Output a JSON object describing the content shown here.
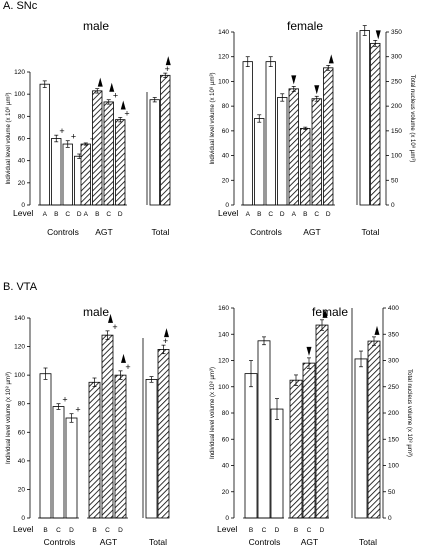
{
  "sections": [
    {
      "label": "A. SNc"
    },
    {
      "label": "B. VTA"
    }
  ],
  "common": {
    "ylabel_left": "Individual level volume (x 10⁸ µm³)",
    "ylabel_right": "Total nucleus volume (x 10⁸ µm³)",
    "level_word": "Level",
    "group_controls": "Controls",
    "group_agt": "AGT",
    "group_total": "Total",
    "plus_mark": "+"
  },
  "chart_data": [
    {
      "type": "bar",
      "section": "A. SNc",
      "title": "male",
      "ylim": [
        0,
        120
      ],
      "yticks": [
        0,
        20,
        40,
        60,
        80,
        100,
        120
      ],
      "y2": null,
      "controls": {
        "levels": [
          "A",
          "B",
          "C",
          "D"
        ],
        "values": [
          109,
          60,
          55,
          44
        ],
        "errors": [
          3,
          3,
          3,
          2
        ],
        "plus": [
          false,
          true,
          true,
          true
        ]
      },
      "agt": {
        "levels": [
          "A",
          "B",
          "C",
          "D"
        ],
        "values": [
          55,
          103,
          93,
          77
        ],
        "errors": [
          1,
          2,
          2,
          2
        ],
        "plus": [
          true,
          false,
          true,
          true
        ],
        "arrow_up": [
          false,
          true,
          true,
          true
        ]
      },
      "total": {
        "values": [
          95,
          117
        ],
        "errors": [
          2,
          2
        ],
        "plus": [
          false,
          true
        ],
        "arrow_up": [
          false,
          true
        ],
        "arrow_down": [
          false,
          false
        ]
      }
    },
    {
      "type": "bar",
      "section": "A. SNc",
      "title": "female",
      "ylim": [
        0,
        140
      ],
      "yticks": [
        0,
        20,
        40,
        60,
        80,
        100,
        120,
        140
      ],
      "y2": {
        "ylim": [
          0,
          350
        ],
        "yticks": [
          0,
          50,
          100,
          150,
          200,
          250,
          300,
          350
        ]
      },
      "controls": {
        "levels": [
          "A",
          "B",
          "C",
          "D"
        ],
        "values": [
          116,
          70,
          116,
          87
        ],
        "errors": [
          4,
          3,
          4,
          3
        ],
        "plus": [
          false,
          false,
          false,
          false
        ]
      },
      "agt": {
        "levels": [
          "A",
          "B",
          "C",
          "D"
        ],
        "values": [
          94,
          62,
          86,
          111
        ],
        "errors": [
          2,
          1,
          2,
          2
        ],
        "plus": [
          false,
          false,
          false,
          false
        ],
        "arrow_up": [
          false,
          false,
          false,
          true
        ],
        "arrow_down": [
          true,
          false,
          true,
          false
        ]
      },
      "total": {
        "values": [
          353,
          327
        ],
        "errors": [
          10,
          6
        ],
        "plus": [
          false,
          false
        ],
        "arrow_up": [
          false,
          false
        ],
        "arrow_down": [
          false,
          true
        ]
      }
    },
    {
      "type": "bar",
      "section": "B. VTA",
      "title": "male",
      "ylim": [
        0,
        140
      ],
      "yticks": [
        0,
        20,
        40,
        60,
        80,
        100,
        120,
        140
      ],
      "y2": null,
      "controls": {
        "levels": [
          "B",
          "C",
          "D"
        ],
        "values": [
          101,
          78,
          70
        ],
        "errors": [
          4,
          2,
          3
        ],
        "plus": [
          false,
          true,
          true
        ]
      },
      "agt": {
        "levels": [
          "B",
          "C",
          "D"
        ],
        "values": [
          95,
          128,
          100
        ],
        "errors": [
          3,
          3,
          3
        ],
        "plus": [
          false,
          true,
          true
        ],
        "arrow_up": [
          false,
          true,
          true
        ]
      },
      "total": {
        "values": [
          97,
          118
        ],
        "errors": [
          2,
          3
        ],
        "plus": [
          false,
          true
        ],
        "arrow_up": [
          false,
          true
        ],
        "arrow_down": [
          false,
          false
        ]
      }
    },
    {
      "type": "bar",
      "section": "B. VTA",
      "title": "female",
      "ylim": [
        0,
        160
      ],
      "yticks": [
        0,
        20,
        40,
        60,
        80,
        100,
        120,
        140,
        160
      ],
      "y2": {
        "ylim": [
          0,
          400
        ],
        "yticks": [
          0,
          50,
          100,
          150,
          200,
          250,
          300,
          350,
          400
        ]
      },
      "controls": {
        "levels": [
          "B",
          "C",
          "D"
        ],
        "values": [
          110,
          135,
          83
        ],
        "errors": [
          10,
          3,
          8
        ],
        "plus": [
          false,
          false,
          false
        ]
      },
      "agt": {
        "levels": [
          "B",
          "C",
          "D"
        ],
        "values": [
          105,
          118,
          147
        ],
        "errors": [
          4,
          4,
          4
        ],
        "plus": [
          false,
          false,
          false
        ],
        "arrow_up": [
          false,
          false,
          true
        ],
        "arrow_down": [
          false,
          true,
          false
        ]
      },
      "total": {
        "values": [
          303,
          337
        ],
        "errors": [
          15,
          8
        ],
        "plus": [
          false,
          false
        ],
        "arrow_up": [
          false,
          true
        ],
        "arrow_down": [
          false,
          false
        ]
      }
    }
  ]
}
